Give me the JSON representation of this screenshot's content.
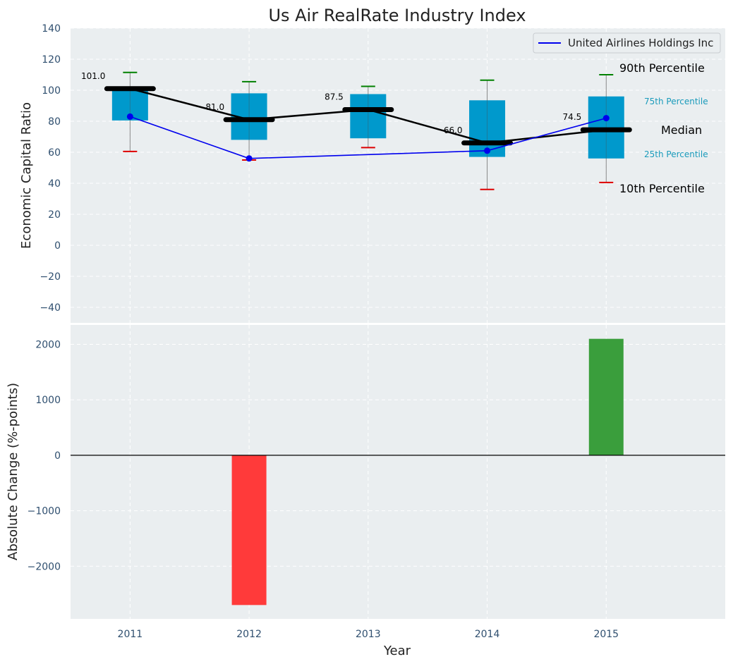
{
  "title": "Us Air RealRate Industry Index",
  "colors": {
    "panel_bg": "#eaeef0",
    "box": "#0099cc",
    "whisker_top": "#008000",
    "whisker_bottom": "#dd0000",
    "median": "#000000",
    "company": "#0000ee",
    "bar_positive": "#3a9e3c",
    "bar_negative": "#ff3a3a",
    "axis_text": "#2f4f6f",
    "annot_teal": "#1a9bbb"
  },
  "chart_data": [
    {
      "type": "box",
      "ylabel": "Economic Capital Ratio",
      "ylim": [
        -50,
        140
      ],
      "yticks": [
        -40,
        -20,
        0,
        20,
        40,
        60,
        80,
        100,
        120,
        140
      ],
      "ytick_labels": [
        "−40",
        "−20",
        "0",
        "20",
        "40",
        "60",
        "80",
        "100",
        "120",
        "140"
      ],
      "grid": true,
      "legend": {
        "position": "top-right",
        "entries": [
          "United Airlines Holdings Inc"
        ]
      },
      "categories": [
        "2011",
        "2012",
        "2013",
        "2014",
        "2015"
      ],
      "p10": [
        60.5,
        55,
        63,
        36,
        40.5
      ],
      "p25": [
        80.5,
        68,
        69,
        57,
        56
      ],
      "median": [
        101.0,
        81.0,
        87.5,
        66.0,
        74.5
      ],
      "median_labels": [
        "101.0",
        "81.0",
        "87.5",
        "66.0",
        "74.5"
      ],
      "p75": [
        101.0,
        98,
        97.5,
        93.5,
        96
      ],
      "p90": [
        111.5,
        105.5,
        102.5,
        106.5,
        110
      ],
      "series": [
        {
          "name": "United Airlines Holdings Inc",
          "values": [
            83,
            56,
            null,
            61,
            82
          ]
        }
      ],
      "series_line_points": [
        83,
        56,
        58.5,
        61,
        82
      ],
      "annotations": {
        "p90": "90th Percentile",
        "p75": "75th Percentile",
        "median": "Median",
        "p25": "25th Percentile",
        "p10": "10th Percentile"
      }
    },
    {
      "type": "bar",
      "ylabel": "Absolute Change (%-points)",
      "xlabel": "Year",
      "ylim": [
        -2950,
        2350
      ],
      "yticks": [
        -2000,
        -1000,
        0,
        1000,
        2000
      ],
      "ytick_labels": [
        "−2000",
        "−1000",
        "0",
        "1000",
        "2000"
      ],
      "categories": [
        "2011",
        "2012",
        "2013",
        "2014",
        "2015"
      ],
      "values": [
        0,
        -2700,
        0,
        0,
        2100
      ]
    }
  ]
}
